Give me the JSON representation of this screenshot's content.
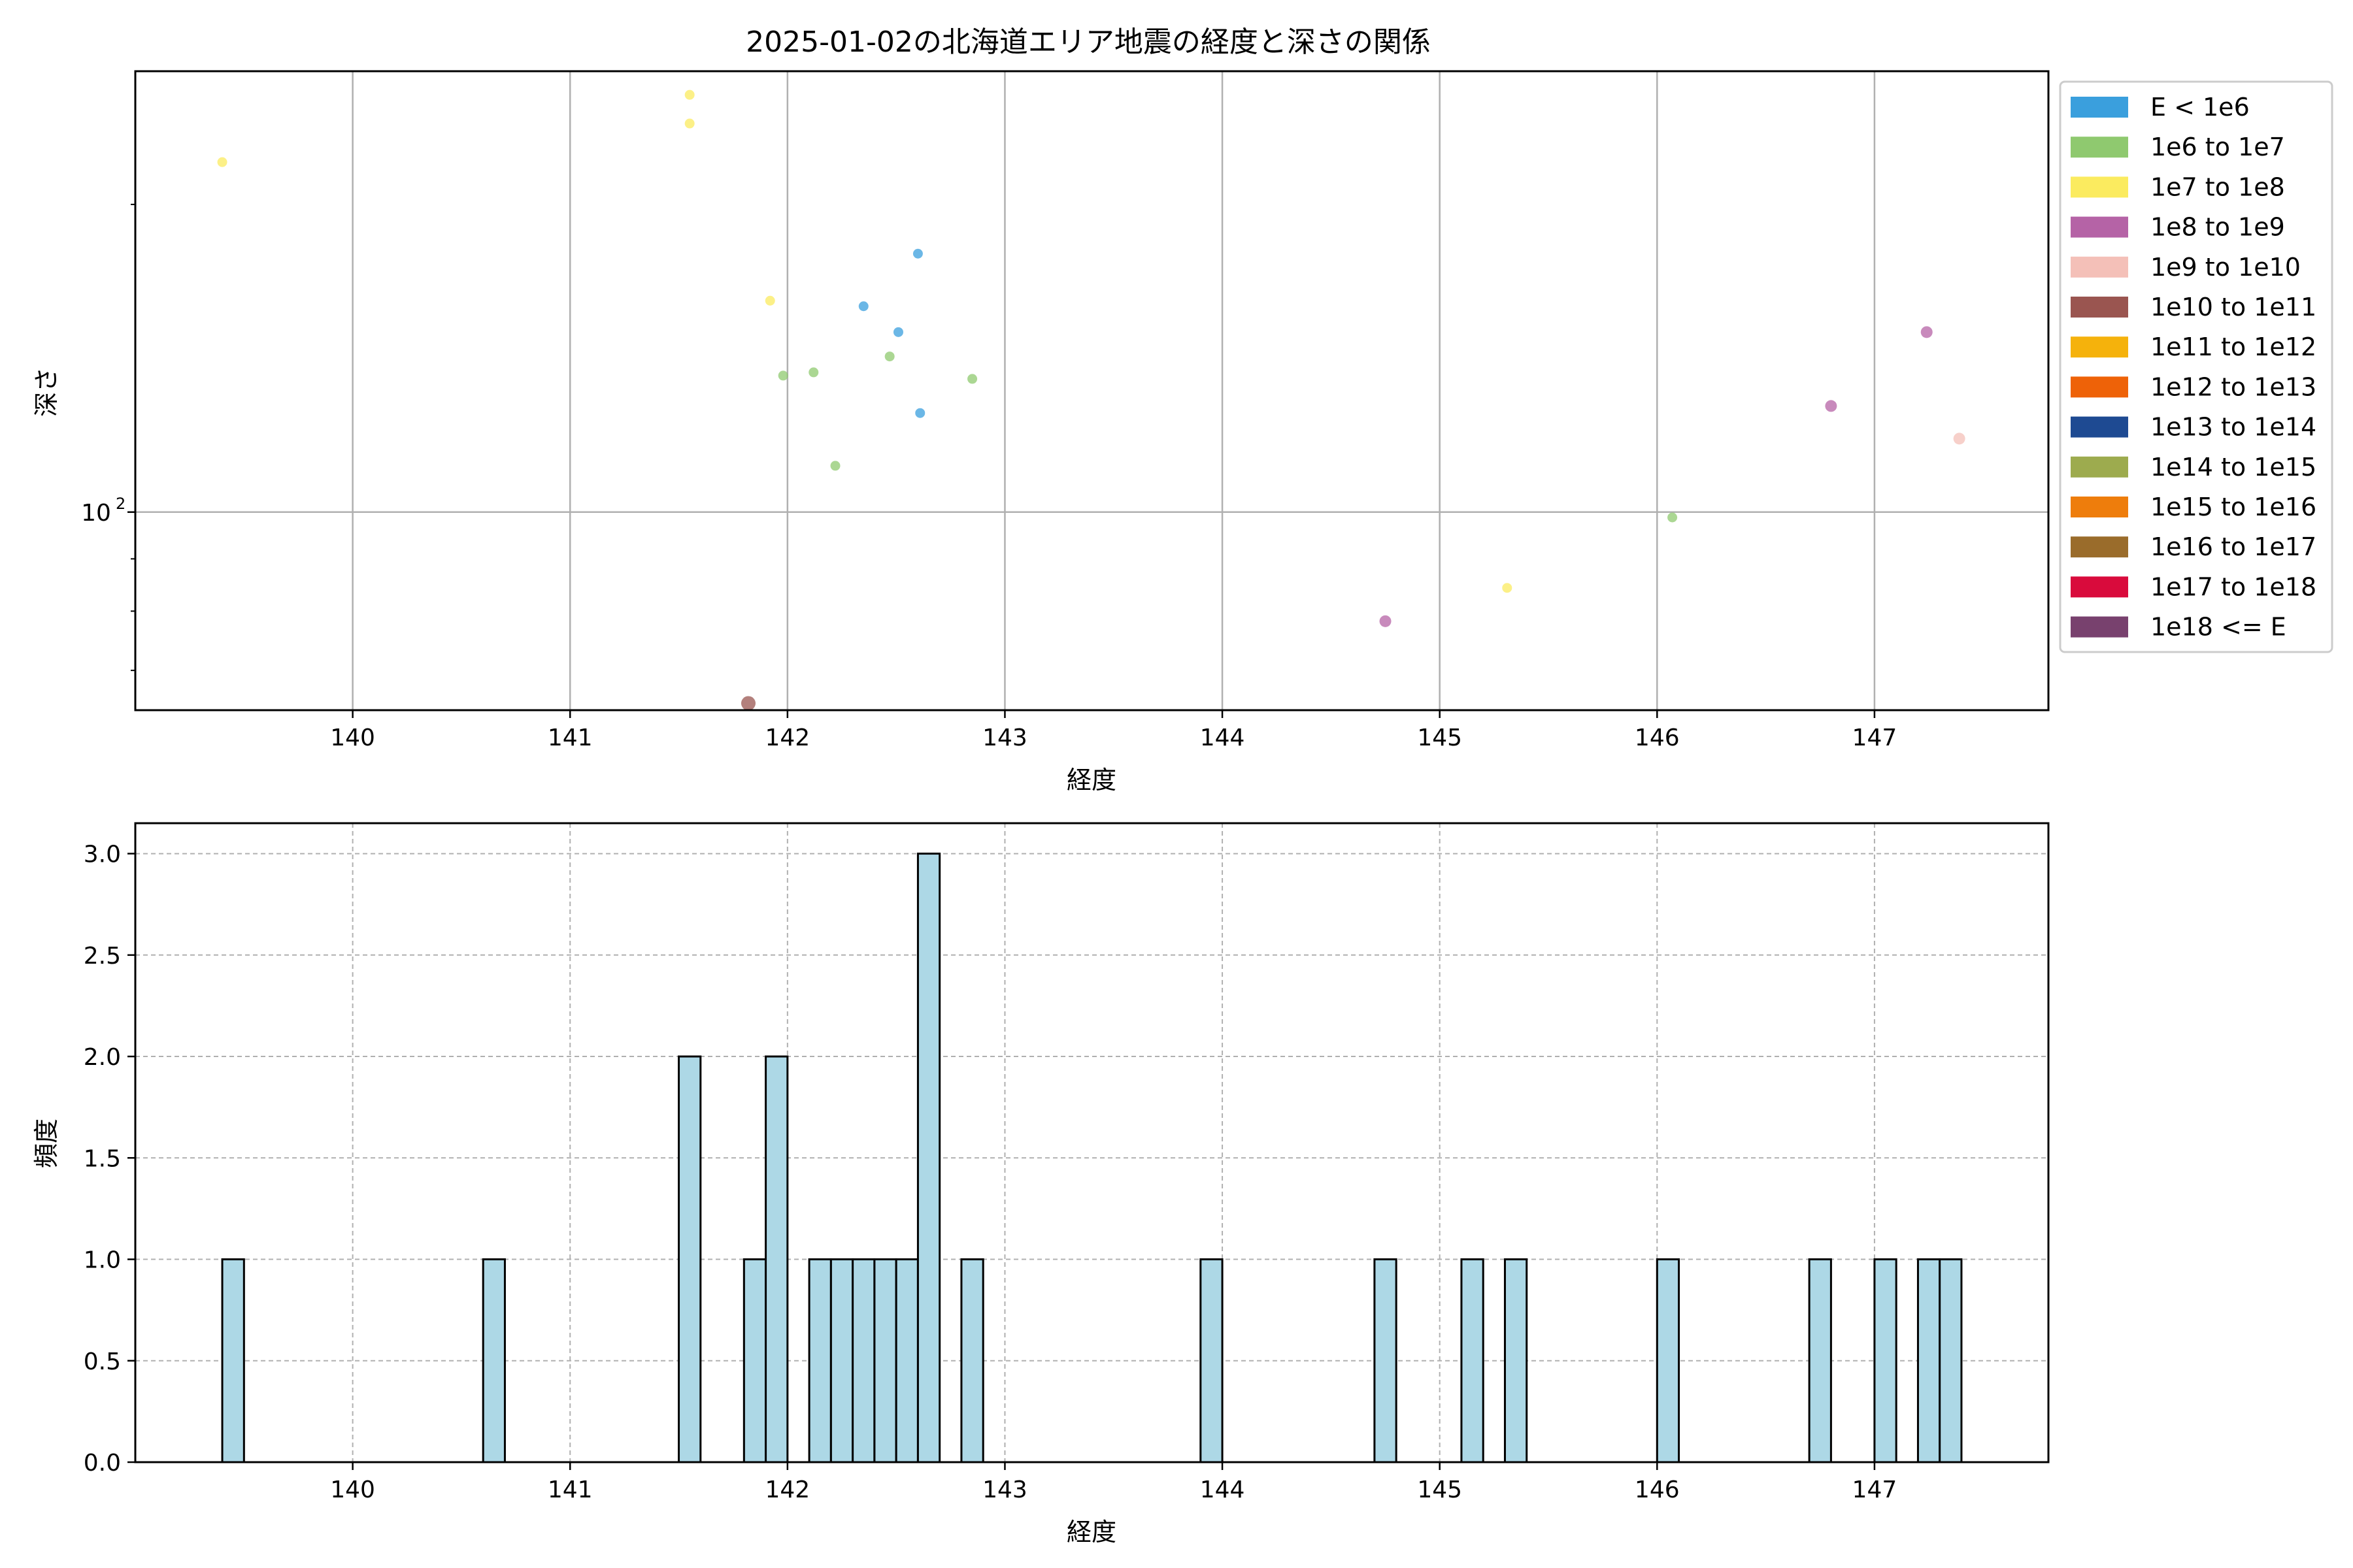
{
  "chart_data": [
    {
      "type": "scatter",
      "title": "2025-01-02の北海道エリア地震の経度と深さの関係",
      "xlabel": "経度",
      "ylabel": "深さ",
      "yscale": "log",
      "xlim": [
        139.0,
        147.8
      ],
      "ylim": [
        64,
        270
      ],
      "xticks": [
        140,
        141,
        142,
        143,
        144,
        145,
        146,
        147
      ],
      "yticks": [
        {
          "value": 100,
          "label": "10",
          "exp": "2"
        }
      ],
      "grid": true,
      "legend_position": "outside-right",
      "legend": [
        {
          "label": "E < 1e6",
          "color": "#3a9fdd"
        },
        {
          "label": "1e6 to 1e7",
          "color": "#8fc96f"
        },
        {
          "label": "1e7 to 1e8",
          "color": "#fbeb5f"
        },
        {
          "label": "1e8 to 1e9",
          "color": "#b563a6"
        },
        {
          "label": "1e9 to 1e10",
          "color": "#f4c0b8"
        },
        {
          "label": "1e10 to 1e11",
          "color": "#9a5550"
        },
        {
          "label": "1e11 to 1e12",
          "color": "#f5b20c"
        },
        {
          "label": "1e12 to 1e13",
          "color": "#ee6208"
        },
        {
          "label": "1e13 to 1e14",
          "color": "#1e4a92"
        },
        {
          "label": "1e14 to 1e15",
          "color": "#9dab4e"
        },
        {
          "label": "1e15 to 1e16",
          "color": "#ee7d0c"
        },
        {
          "label": "1e16 to 1e17",
          "color": "#9a6c2b"
        },
        {
          "label": "1e17 to 1e18",
          "color": "#d90b3c"
        },
        {
          "label": "1e18 <= E",
          "color": "#78416e"
        }
      ],
      "points": [
        {
          "x": 139.4,
          "y": 220,
          "cls": 2
        },
        {
          "x": 141.55,
          "y": 256,
          "cls": 2
        },
        {
          "x": 141.55,
          "y": 240,
          "cls": 2
        },
        {
          "x": 141.92,
          "y": 161,
          "cls": 2
        },
        {
          "x": 142.35,
          "y": 159,
          "cls": 0
        },
        {
          "x": 142.6,
          "y": 179,
          "cls": 0
        },
        {
          "x": 142.51,
          "y": 150,
          "cls": 0
        },
        {
          "x": 142.61,
          "y": 125,
          "cls": 0
        },
        {
          "x": 141.98,
          "y": 136,
          "cls": 1
        },
        {
          "x": 142.12,
          "y": 137,
          "cls": 1
        },
        {
          "x": 142.47,
          "y": 142,
          "cls": 1
        },
        {
          "x": 142.85,
          "y": 135,
          "cls": 1
        },
        {
          "x": 142.22,
          "y": 111,
          "cls": 1
        },
        {
          "x": 146.07,
          "y": 98.8,
          "cls": 1
        },
        {
          "x": 145.31,
          "y": 84.3,
          "cls": 2
        },
        {
          "x": 144.75,
          "y": 78.2,
          "cls": 3
        },
        {
          "x": 146.8,
          "y": 127,
          "cls": 3
        },
        {
          "x": 147.24,
          "y": 150,
          "cls": 3
        },
        {
          "x": 147.39,
          "y": 118,
          "cls": 4
        },
        {
          "x": 141.82,
          "y": 65.0,
          "cls": 5
        }
      ]
    },
    {
      "type": "bar",
      "xlabel": "経度",
      "ylabel": "頻度",
      "xlim": [
        139.0,
        147.8
      ],
      "ylim": [
        0,
        3.15
      ],
      "xticks": [
        140,
        141,
        142,
        143,
        144,
        145,
        146,
        147
      ],
      "yticks": [
        "0.0",
        "0.5",
        "1.0",
        "1.5",
        "2.0",
        "2.5",
        "3.0"
      ],
      "grid": "dashed",
      "bar_color": "#add8e6",
      "bin_width": 0.1,
      "bins": [
        {
          "x0": 139.4,
          "count": 1
        },
        {
          "x0": 140.6,
          "count": 1
        },
        {
          "x0": 141.5,
          "count": 2
        },
        {
          "x0": 141.8,
          "count": 1
        },
        {
          "x0": 141.9,
          "count": 2
        },
        {
          "x0": 142.1,
          "count": 1
        },
        {
          "x0": 142.2,
          "count": 1
        },
        {
          "x0": 142.3,
          "count": 1
        },
        {
          "x0": 142.4,
          "count": 1
        },
        {
          "x0": 142.5,
          "count": 1
        },
        {
          "x0": 142.6,
          "count": 3
        },
        {
          "x0": 142.8,
          "count": 1
        },
        {
          "x0": 143.9,
          "count": 1
        },
        {
          "x0": 144.7,
          "count": 1
        },
        {
          "x0": 145.1,
          "count": 1
        },
        {
          "x0": 145.3,
          "count": 1
        },
        {
          "x0": 146.0,
          "count": 1
        },
        {
          "x0": 146.7,
          "count": 1
        },
        {
          "x0": 147.0,
          "count": 1
        },
        {
          "x0": 147.2,
          "count": 1
        },
        {
          "x0": 147.3,
          "count": 1
        }
      ]
    }
  ]
}
